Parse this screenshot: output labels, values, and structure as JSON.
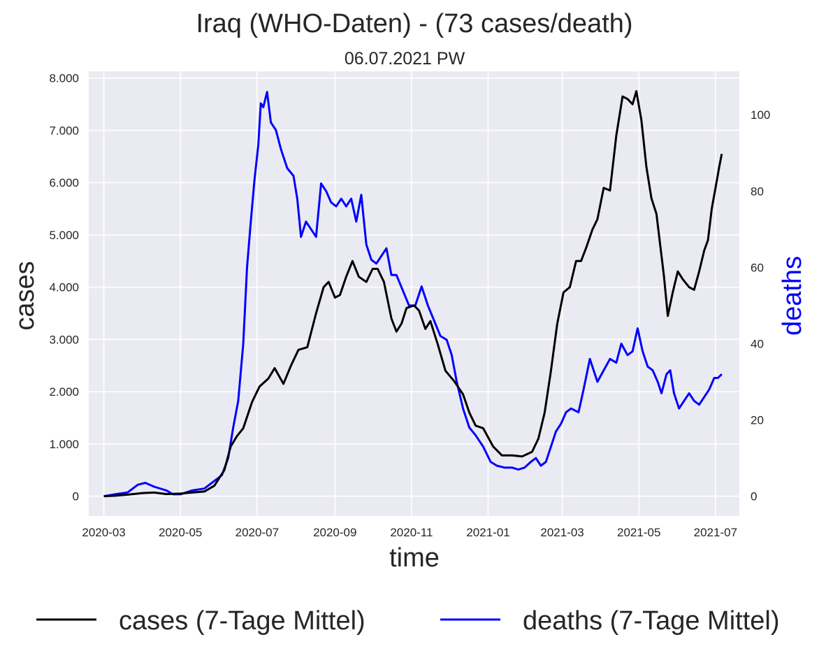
{
  "chart_data": {
    "type": "line",
    "title": "Iraq (WHO-Daten) - (73 cases/death)",
    "subtitle": "06.07.2021 PW",
    "xlabel": "time",
    "ylabel": "cases",
    "y2label": "deaths",
    "xlim": [
      "2020-02-18",
      "2021-07-20"
    ],
    "ylim": [
      -380,
      8130
    ],
    "y2lim": [
      -5.2,
      111.4
    ],
    "x_ticks": [
      "2020-03",
      "2020-05",
      "2020-07",
      "2020-09",
      "2020-11",
      "2021-01",
      "2021-03",
      "2021-05",
      "2021-07"
    ],
    "y_ticks": [
      0,
      1000,
      2000,
      3000,
      4000,
      5000,
      6000,
      7000,
      8000
    ],
    "y_tick_labels": [
      "0",
      "1.000",
      "2.000",
      "3.000",
      "4.000",
      "5.000",
      "6.000",
      "7.000",
      "8.000"
    ],
    "y2_ticks": [
      0,
      20,
      40,
      60,
      80,
      100
    ],
    "y2_tick_labels": [
      "0",
      "20",
      "40",
      "60",
      "80",
      "100"
    ],
    "grid": true,
    "legend_position": "bottom-center",
    "series": [
      {
        "name": "cases (7-Tage Mittel)",
        "axis": "left",
        "color": "#000000",
        "points": [
          [
            "2020-03-01",
            0
          ],
          [
            "2020-03-10",
            10
          ],
          [
            "2020-03-20",
            30
          ],
          [
            "2020-04-01",
            60
          ],
          [
            "2020-04-10",
            70
          ],
          [
            "2020-04-20",
            40
          ],
          [
            "2020-05-01",
            50
          ],
          [
            "2020-05-10",
            70
          ],
          [
            "2020-05-20",
            90
          ],
          [
            "2020-05-28",
            200
          ],
          [
            "2020-06-05",
            500
          ],
          [
            "2020-06-10",
            950
          ],
          [
            "2020-06-15",
            1150
          ],
          [
            "2020-06-20",
            1300
          ],
          [
            "2020-06-27",
            1800
          ],
          [
            "2020-07-03",
            2100
          ],
          [
            "2020-07-10",
            2250
          ],
          [
            "2020-07-15",
            2450
          ],
          [
            "2020-07-22",
            2150
          ],
          [
            "2020-07-28",
            2500
          ],
          [
            "2020-08-03",
            2800
          ],
          [
            "2020-08-10",
            2850
          ],
          [
            "2020-08-17",
            3500
          ],
          [
            "2020-08-23",
            4000
          ],
          [
            "2020-08-27",
            4100
          ],
          [
            "2020-09-01",
            3800
          ],
          [
            "2020-09-05",
            3850
          ],
          [
            "2020-09-10",
            4200
          ],
          [
            "2020-09-15",
            4500
          ],
          [
            "2020-09-20",
            4200
          ],
          [
            "2020-09-26",
            4100
          ],
          [
            "2020-10-01",
            4350
          ],
          [
            "2020-10-05",
            4350
          ],
          [
            "2020-10-10",
            4100
          ],
          [
            "2020-10-16",
            3400
          ],
          [
            "2020-10-20",
            3150
          ],
          [
            "2020-10-24",
            3300
          ],
          [
            "2020-10-28",
            3600
          ],
          [
            "2020-11-03",
            3650
          ],
          [
            "2020-11-07",
            3550
          ],
          [
            "2020-11-12",
            3200
          ],
          [
            "2020-11-16",
            3350
          ],
          [
            "2020-11-22",
            2900
          ],
          [
            "2020-11-28",
            2400
          ],
          [
            "2020-12-05",
            2200
          ],
          [
            "2020-12-12",
            1950
          ],
          [
            "2020-12-17",
            1600
          ],
          [
            "2020-12-22",
            1350
          ],
          [
            "2020-12-28",
            1300
          ],
          [
            "2021-01-05",
            950
          ],
          [
            "2021-01-12",
            780
          ],
          [
            "2021-01-20",
            780
          ],
          [
            "2021-01-28",
            760
          ],
          [
            "2021-02-05",
            850
          ],
          [
            "2021-02-10",
            1100
          ],
          [
            "2021-02-15",
            1600
          ],
          [
            "2021-02-20",
            2400
          ],
          [
            "2021-02-25",
            3300
          ],
          [
            "2021-03-02",
            3900
          ],
          [
            "2021-03-07",
            4000
          ],
          [
            "2021-03-12",
            4500
          ],
          [
            "2021-03-16",
            4500
          ],
          [
            "2021-03-20",
            4750
          ],
          [
            "2021-03-25",
            5100
          ],
          [
            "2021-03-29",
            5300
          ],
          [
            "2021-04-03",
            5900
          ],
          [
            "2021-04-08",
            5850
          ],
          [
            "2021-04-13",
            6900
          ],
          [
            "2021-04-18",
            7650
          ],
          [
            "2021-04-22",
            7600
          ],
          [
            "2021-04-26",
            7500
          ],
          [
            "2021-04-29",
            7750
          ],
          [
            "2021-05-03",
            7200
          ],
          [
            "2021-05-07",
            6300
          ],
          [
            "2021-05-11",
            5700
          ],
          [
            "2021-05-15",
            5400
          ],
          [
            "2021-05-18",
            4800
          ],
          [
            "2021-05-21",
            4200
          ],
          [
            "2021-05-24",
            3450
          ],
          [
            "2021-05-28",
            3900
          ],
          [
            "2021-06-01",
            4300
          ],
          [
            "2021-06-05",
            4150
          ],
          [
            "2021-06-10",
            4000
          ],
          [
            "2021-06-14",
            3950
          ],
          [
            "2021-06-18",
            4300
          ],
          [
            "2021-06-22",
            4700
          ],
          [
            "2021-06-25",
            4900
          ],
          [
            "2021-06-28",
            5500
          ],
          [
            "2021-07-01",
            5900
          ],
          [
            "2021-07-04",
            6300
          ],
          [
            "2021-07-06",
            6550
          ]
        ]
      },
      {
        "name": "deaths (7-Tage Mittel)",
        "axis": "right",
        "color": "#0000ff",
        "points": [
          [
            "2020-03-01",
            0
          ],
          [
            "2020-03-10",
            0.5
          ],
          [
            "2020-03-20",
            1
          ],
          [
            "2020-03-28",
            3
          ],
          [
            "2020-04-03",
            3.5
          ],
          [
            "2020-04-10",
            2.5
          ],
          [
            "2020-04-20",
            1.5
          ],
          [
            "2020-04-25",
            0.5
          ],
          [
            "2020-05-01",
            0.5
          ],
          [
            "2020-05-10",
            1.5
          ],
          [
            "2020-05-20",
            2
          ],
          [
            "2020-05-28",
            4
          ],
          [
            "2020-06-03",
            5.5
          ],
          [
            "2020-06-08",
            10
          ],
          [
            "2020-06-12",
            18
          ],
          [
            "2020-06-16",
            25
          ],
          [
            "2020-06-20",
            40
          ],
          [
            "2020-06-23",
            60
          ],
          [
            "2020-06-26",
            72
          ],
          [
            "2020-06-29",
            83
          ],
          [
            "2020-07-02",
            92
          ],
          [
            "2020-07-04",
            103
          ],
          [
            "2020-07-06",
            102
          ],
          [
            "2020-07-09",
            106
          ],
          [
            "2020-07-12",
            98
          ],
          [
            "2020-07-16",
            96
          ],
          [
            "2020-07-20",
            91
          ],
          [
            "2020-07-25",
            86
          ],
          [
            "2020-07-30",
            84
          ],
          [
            "2020-08-02",
            78
          ],
          [
            "2020-08-05",
            68
          ],
          [
            "2020-08-09",
            72
          ],
          [
            "2020-08-13",
            70
          ],
          [
            "2020-08-17",
            68
          ],
          [
            "2020-08-21",
            82
          ],
          [
            "2020-08-25",
            80
          ],
          [
            "2020-08-29",
            77
          ],
          [
            "2020-09-02",
            76
          ],
          [
            "2020-09-06",
            78
          ],
          [
            "2020-09-10",
            76
          ],
          [
            "2020-09-14",
            78
          ],
          [
            "2020-09-18",
            72
          ],
          [
            "2020-09-22",
            79
          ],
          [
            "2020-09-26",
            66
          ],
          [
            "2020-09-30",
            62
          ],
          [
            "2020-10-04",
            61
          ],
          [
            "2020-10-08",
            63
          ],
          [
            "2020-10-12",
            65
          ],
          [
            "2020-10-16",
            58
          ],
          [
            "2020-10-20",
            58
          ],
          [
            "2020-10-25",
            54
          ],
          [
            "2020-10-30",
            50
          ],
          [
            "2020-11-04",
            50
          ],
          [
            "2020-11-09",
            55
          ],
          [
            "2020-11-14",
            50
          ],
          [
            "2020-11-19",
            46
          ],
          [
            "2020-11-24",
            42
          ],
          [
            "2020-11-29",
            41
          ],
          [
            "2020-12-03",
            37
          ],
          [
            "2020-12-07",
            30
          ],
          [
            "2020-12-12",
            23
          ],
          [
            "2020-12-17",
            18
          ],
          [
            "2020-12-22",
            16
          ],
          [
            "2020-12-28",
            13
          ],
          [
            "2021-01-03",
            9
          ],
          [
            "2021-01-08",
            8
          ],
          [
            "2021-01-14",
            7.5
          ],
          [
            "2021-01-20",
            7.5
          ],
          [
            "2021-01-25",
            7
          ],
          [
            "2021-01-30",
            7.5
          ],
          [
            "2021-02-04",
            9
          ],
          [
            "2021-02-08",
            10
          ],
          [
            "2021-02-12",
            8
          ],
          [
            "2021-02-16",
            9
          ],
          [
            "2021-02-20",
            13
          ],
          [
            "2021-02-24",
            17
          ],
          [
            "2021-02-28",
            19
          ],
          [
            "2021-03-04",
            22
          ],
          [
            "2021-03-08",
            23
          ],
          [
            "2021-03-14",
            22
          ],
          [
            "2021-03-18",
            28
          ],
          [
            "2021-03-23",
            36
          ],
          [
            "2021-03-29",
            30
          ],
          [
            "2021-04-03",
            33
          ],
          [
            "2021-04-08",
            36
          ],
          [
            "2021-04-13",
            35
          ],
          [
            "2021-04-17",
            40
          ],
          [
            "2021-04-22",
            37
          ],
          [
            "2021-04-26",
            38
          ],
          [
            "2021-04-30",
            44
          ],
          [
            "2021-05-04",
            38
          ],
          [
            "2021-05-08",
            34
          ],
          [
            "2021-05-12",
            33
          ],
          [
            "2021-05-16",
            30
          ],
          [
            "2021-05-19",
            27
          ],
          [
            "2021-05-23",
            32
          ],
          [
            "2021-05-26",
            33
          ],
          [
            "2021-05-29",
            27
          ],
          [
            "2021-06-02",
            23
          ],
          [
            "2021-06-06",
            25
          ],
          [
            "2021-06-10",
            27
          ],
          [
            "2021-06-14",
            25
          ],
          [
            "2021-06-18",
            24
          ],
          [
            "2021-06-22",
            26
          ],
          [
            "2021-06-26",
            28
          ],
          [
            "2021-06-30",
            31
          ],
          [
            "2021-07-03",
            31
          ],
          [
            "2021-07-06",
            32
          ]
        ]
      }
    ]
  }
}
